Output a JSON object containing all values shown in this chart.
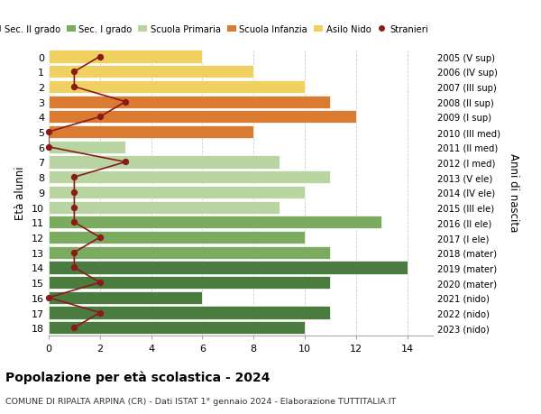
{
  "ages": [
    18,
    17,
    16,
    15,
    14,
    13,
    12,
    11,
    10,
    9,
    8,
    7,
    6,
    5,
    4,
    3,
    2,
    1,
    0
  ],
  "right_labels": [
    "2005 (V sup)",
    "2006 (IV sup)",
    "2007 (III sup)",
    "2008 (II sup)",
    "2009 (I sup)",
    "2010 (III med)",
    "2011 (II med)",
    "2012 (I med)",
    "2013 (V ele)",
    "2014 (IV ele)",
    "2015 (III ele)",
    "2016 (II ele)",
    "2017 (I ele)",
    "2018 (mater)",
    "2019 (mater)",
    "2020 (mater)",
    "2021 (nido)",
    "2022 (nido)",
    "2023 (nido)"
  ],
  "bar_values": [
    10,
    11,
    6,
    11,
    14,
    11,
    10,
    13,
    9,
    10,
    11,
    9,
    3,
    8,
    12,
    11,
    10,
    8,
    6
  ],
  "bar_colors": [
    "#4a7c40",
    "#4a7c40",
    "#4a7c40",
    "#4a7c40",
    "#4a7c40",
    "#7aab5e",
    "#7aab5e",
    "#7aab5e",
    "#b8d4a0",
    "#b8d4a0",
    "#b8d4a0",
    "#b8d4a0",
    "#b8d4a0",
    "#d97b30",
    "#d97b30",
    "#d97b30",
    "#f0d060",
    "#f0d060",
    "#f0d060"
  ],
  "stranieri_values": [
    1,
    2,
    0,
    2,
    1,
    1,
    2,
    1,
    1,
    1,
    1,
    3,
    0,
    0,
    2,
    3,
    1,
    1,
    2
  ],
  "legend_labels": [
    "Sec. II grado",
    "Sec. I grado",
    "Scuola Primaria",
    "Scuola Infanzia",
    "Asilo Nido",
    "Stranieri"
  ],
  "legend_colors": [
    "#4a7c40",
    "#7aab5e",
    "#b8d4a0",
    "#d97b30",
    "#f0d060",
    "#8b1a1a"
  ],
  "ylabel": "Età alunni",
  "right_ylabel": "Anni di nascita",
  "title": "Popolazione per età scolastica - 2024",
  "subtitle": "COMUNE DI RIPALTA ARPINA (CR) - Dati ISTAT 1° gennaio 2024 - Elaborazione TUTTITALIA.IT",
  "background_color": "#ffffff",
  "grid_color": "#cccccc",
  "stranieri_line_color": "#8b1a1a",
  "stranieri_dot_color": "#8b1a1a"
}
